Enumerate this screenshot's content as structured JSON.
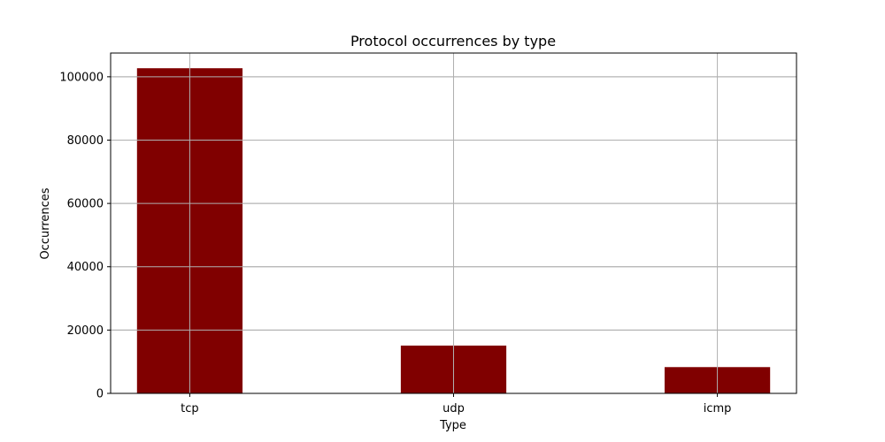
{
  "chart_data": {
    "type": "bar",
    "title": "Protocol occurrences by type",
    "xlabel": "Type",
    "ylabel": "Occurrences",
    "categories": [
      "tcp",
      "udp",
      "icmp"
    ],
    "values": [
      102700,
      15100,
      8300
    ],
    "ylim": [
      0,
      107500
    ],
    "yticks": [
      0,
      20000,
      40000,
      60000,
      80000,
      100000
    ],
    "grid": true,
    "bar_color": "#800000",
    "grid_color": "#b0b0b0"
  }
}
